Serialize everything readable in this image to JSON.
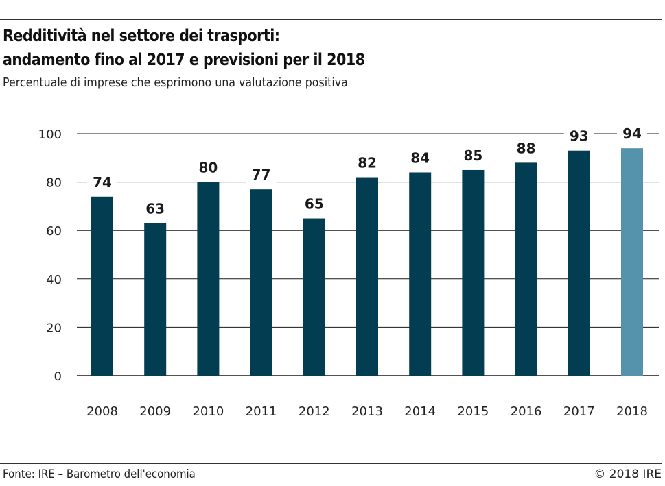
{
  "header": {
    "title_line1": "Redditività nel settore dei trasporti:",
    "title_line2": "andamento fino al 2017 e previsioni per il 2018",
    "subtitle": "Percentuale di imprese che esprimono una valutazione positiva"
  },
  "footer": {
    "source": "Fonte: IRE – Barometro dell'economia",
    "copyright": "© 2018 IRE"
  },
  "colors": {
    "actual": "#023d52",
    "forecast": "#5593ad",
    "grid": "#1a1a1a"
  },
  "chart_data": {
    "type": "bar",
    "title": "Redditività nel settore dei trasporti: andamento fino al 2017 e previsioni per il 2018",
    "subtitle": "Percentuale di imprese che esprimono una valutazione positiva",
    "categories": [
      "2008",
      "2009",
      "2010",
      "2011",
      "2012",
      "2013",
      "2014",
      "2015",
      "2016",
      "2017",
      "2018"
    ],
    "values": [
      74,
      63,
      80,
      77,
      65,
      82,
      84,
      85,
      88,
      93,
      94
    ],
    "data_labels": [
      "74",
      "63",
      "80",
      "77",
      "65",
      "82",
      "84",
      "85",
      "88",
      "93",
      "94"
    ],
    "forecast": [
      false,
      false,
      false,
      false,
      false,
      false,
      false,
      false,
      false,
      false,
      true
    ],
    "ylim": [
      0,
      100
    ],
    "yticks": [
      0,
      20,
      40,
      60,
      80,
      100
    ],
    "ytick_labels": [
      "0",
      "20",
      "40",
      "60",
      "80",
      "100"
    ],
    "xlabel": "",
    "ylabel": "",
    "grid": true,
    "legend": "none"
  }
}
